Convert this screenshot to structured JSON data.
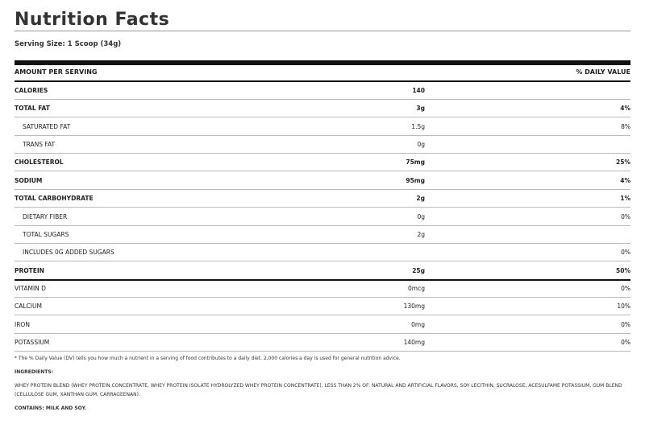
{
  "header": {
    "title": "Nutrition Facts",
    "serving_size": "Serving Size: 1 Scoop (34g)"
  },
  "table": {
    "header": [
      "AMOUNT PER SERVING",
      "% DAILY VALUE"
    ],
    "rows": [
      {
        "name": "CALORIES",
        "amount": "140"
      },
      {
        "name": "TOTAL FAT",
        "amount": "3g",
        "dv": "4%"
      },
      {
        "name": "SATURATED FAT",
        "amount": "1.5g",
        "dv": "8%"
      },
      {
        "name": "TRANS FAT",
        "amount": "0g"
      },
      {
        "name": "CHOLESTEROL",
        "amount": "75mg",
        "dv": "25%"
      },
      {
        "name": "SODIUM",
        "amount": "95mg",
        "dv": "4%"
      },
      {
        "name": "TOTAL CARBOHYDRATE",
        "amount": "2g",
        "dv": "1%"
      },
      {
        "name": "DIETARY FIBER",
        "amount": "0g",
        "dv": "0%"
      },
      {
        "name": "TOTAL SUGARS",
        "amount": "2g"
      },
      {
        "name": "INCLUDES 0G ADDED SUGARS",
        "dv": "0%"
      },
      {
        "name": "PROTEIN",
        "amount": "25g",
        "dv": "50%"
      },
      {
        "name": "VITAMIN D",
        "amount": "0mcg",
        "dv": "0%"
      },
      {
        "name": "CALCIUM",
        "amount": "130mg",
        "dv": "10%"
      },
      {
        "name": "IRON",
        "amount": "0mg",
        "dv": "0%"
      },
      {
        "name": "POTASSIUM",
        "amount": "140mg",
        "dv": "0%"
      }
    ]
  },
  "footer": {
    "footnote": "* The % Daily Value (DV) tells you how much a nutrient in a serving of food contributes to a daily diet. 2,000 calories a day is used for general nutrition advice.",
    "ingredients_label": "INGREDIENTS:",
    "ingredients": "WHEY PROTEIN BLEND (WHEY PROTEIN CONCENTRATE, WHEY PROTEIN ISOLATE HYDROLYZED WHEY PROTEIN CONCENTRATE), LESS THAN 2% OF: NATURAL AND ARTIFICIAL FLAVORS, SOY LECITHIN, SUCRALOSE, ACESULFAME POTASSIUM, GUM BLEND (CELLULOSE GUM, XANTHAN GUM, CARRAGEENAN).",
    "contains": "CONTAINS: MILK AND SOY."
  }
}
